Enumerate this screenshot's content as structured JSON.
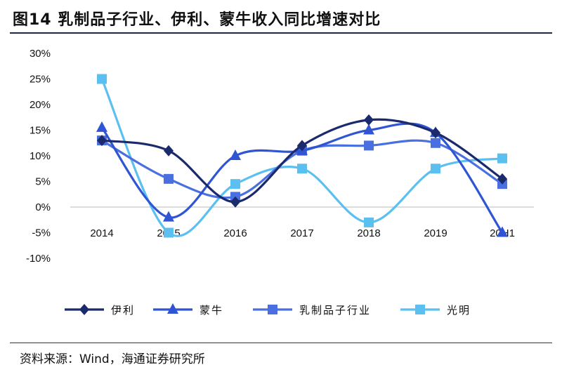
{
  "title": "图14 乳制品子行业、伊利、蒙牛收入同比增速对比",
  "source": "资料来源：Wind，海通证券研究所",
  "chart_data": {
    "type": "line",
    "categories": [
      "2014",
      "2015",
      "2016",
      "2017",
      "2018",
      "2019",
      "20H1"
    ],
    "y_tick_labels": [
      "30%",
      "25%",
      "20%",
      "15%",
      "10%",
      "5%",
      "0%",
      "-5%",
      "-10%"
    ],
    "ylim": [
      -10,
      30
    ],
    "y_unit": "%",
    "grid": false,
    "smooth": true,
    "legend_position": "bottom",
    "series": [
      {
        "name": "伊利",
        "marker": "diamond",
        "color": "#1a2a6c",
        "values": [
          13,
          11,
          1,
          12,
          17,
          14.5,
          5.5
        ]
      },
      {
        "name": "蒙牛",
        "marker": "triangle",
        "color": "#2f55d4",
        "values": [
          15.5,
          -2,
          10,
          11,
          15,
          14.5,
          -5
        ]
      },
      {
        "name": "乳制品子行业",
        "marker": "square",
        "color": "#4a6fe0",
        "values": [
          13,
          5.5,
          2,
          11,
          12,
          12.5,
          4.5
        ]
      },
      {
        "name": "光明",
        "marker": "square",
        "color": "#5bc0f0",
        "values": [
          25,
          -5,
          4.5,
          7.5,
          -3,
          7.5,
          9.5
        ]
      }
    ]
  }
}
